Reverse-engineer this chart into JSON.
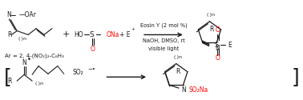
{
  "bg_color": "#ffffff",
  "black": "#1a1a1a",
  "red": "#ff0000",
  "arrow_label1": "Eosin Y (2 mol %)",
  "arrow_label2": "NaOH, DMSO, rt",
  "arrow_label3": "visible light",
  "ar_label": "Ar = 2, 4-(NO₂)₂-C₆H₃",
  "figsize": [
    3.78,
    1.25
  ],
  "dpi": 100
}
